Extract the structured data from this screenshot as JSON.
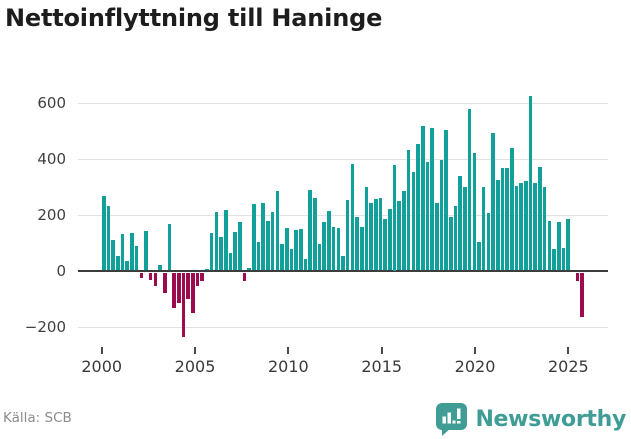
{
  "title": "Nettoinflyttning till Haninge",
  "source": "Källa: SCB",
  "brand": {
    "name": "Newsworthy",
    "icon": "bar-chart-speech-bubble-icon",
    "color": "#3F9D96"
  },
  "colors": {
    "positive": "#11A09A",
    "negative": "#9B0B4D",
    "grid": "#E2E2E2",
    "zero_line": "#3C3C3C",
    "axis_text": "#3F3F3F",
    "title_text": "#1D1D1D",
    "source_text": "#8C8C8C",
    "background": "#FFFFFF"
  },
  "chart_data": {
    "type": "bar",
    "title": "Nettoinflyttning till Haninge",
    "xlabel": "",
    "ylabel": "",
    "x_unit": "quarter",
    "start_year": 2000,
    "start_quarter": 1,
    "end_label": "2025 Q3",
    "grid": true,
    "y_axis": {
      "ticks": [
        600,
        400,
        200,
        0,
        -200
      ],
      "tick_labels": [
        "600",
        "400",
        "200",
        "0",
        "−200"
      ],
      "range": [
        -260,
        660
      ]
    },
    "x_axis": {
      "tick_years": [
        2000,
        2005,
        2010,
        2015,
        2020,
        2025
      ],
      "tick_labels": [
        "2000",
        "2005",
        "2010",
        "2015",
        "2020",
        "2025"
      ]
    },
    "series": [
      {
        "name": "Nettoinflyttning",
        "values": [
          265,
          228,
          110,
          50,
          130,
          35,
          135,
          88,
          -21,
          139,
          -28,
          -49,
          21,
          -72,
          166,
          -127,
          -110,
          -230,
          -95,
          -145,
          -47,
          -30,
          5,
          135,
          207,
          121,
          215,
          62,
          138,
          173,
          -30,
          10,
          236,
          102,
          242,
          177,
          210,
          284,
          94,
          153,
          76,
          145,
          147,
          40,
          285,
          258,
          94,
          171,
          212,
          155,
          150,
          52,
          252,
          380,
          189,
          155,
          299,
          242,
          254,
          260,
          183,
          218,
          375,
          248,
          284,
          429,
          351,
          450,
          516,
          388,
          509,
          242,
          393,
          501,
          189,
          230,
          337,
          296,
          574,
          418,
          100,
          298,
          205,
          488,
          324,
          366,
          365,
          437,
          302,
          312,
          320,
          620,
          312,
          370,
          297,
          176,
          77,
          172,
          81,
          182,
          0,
          -30,
          -157
        ]
      }
    ]
  }
}
